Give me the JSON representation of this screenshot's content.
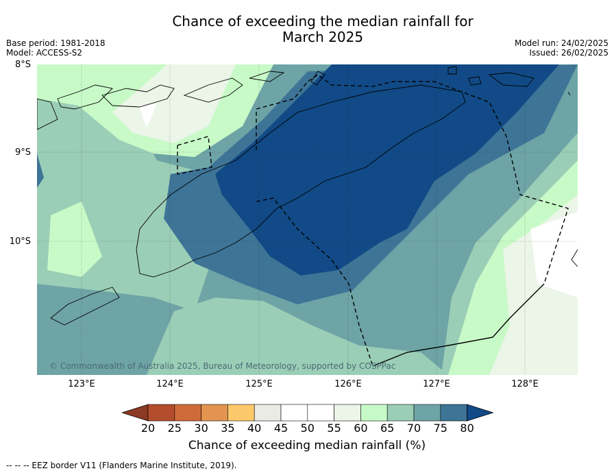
{
  "title": {
    "line1": "Chance of exceeding the median rainfall for",
    "line2": "March 2025"
  },
  "meta": {
    "base_period": "Base period: 1981-2018",
    "model": "Model: ACCESS-S2",
    "model_run": "Model run: 24/02/2025",
    "issued": "Issued: 26/02/2025"
  },
  "latitude_labels": [
    "8°S",
    "9°S",
    "10°S"
  ],
  "longitude_labels": [
    "123°E",
    "124°E",
    "125°E",
    "126°E",
    "127°E",
    "128°E"
  ],
  "copyright": "© Commonwealth of Australia 2025, Bureau of Meteorology, supported by COSPPac",
  "colorbar": {
    "ticks": [
      "20",
      "25",
      "30",
      "35",
      "40",
      "45",
      "50",
      "55",
      "60",
      "65",
      "70",
      "75",
      "80"
    ],
    "colors": [
      "#8c3a23",
      "#b44d2c",
      "#cf6b3a",
      "#e39450",
      "#fcc96a",
      "#ebebe6",
      "#ffffff",
      "#ffffff",
      "#ebf5e8",
      "#c8fac8",
      "#9bceb6",
      "#6ea4a6",
      "#3e7496",
      "#114a86"
    ],
    "title": "Chance of exceeding median rainfall (%)"
  },
  "legend_footnote": "--  --  -- EEZ border V11 (Flanders Marine Institute, 2019)."
}
